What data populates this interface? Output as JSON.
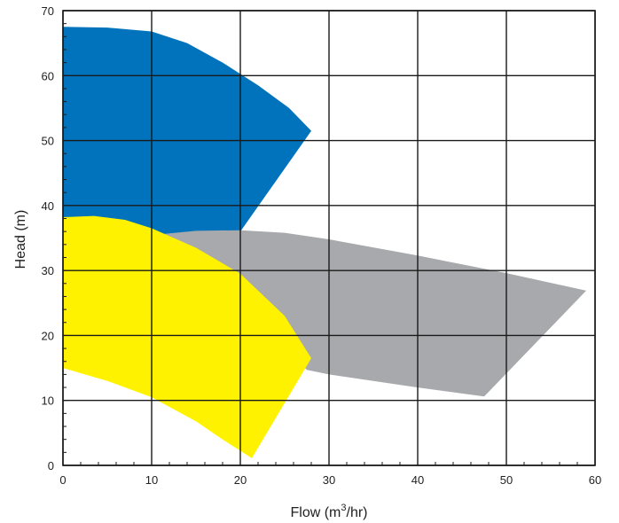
{
  "chart_data": {
    "type": "area",
    "title": "",
    "xlabel": "Flow (m",
    "xlabel_sup": "3",
    "xlabel_tail": "/hr)",
    "ylabel": "Head (m)",
    "xlim": [
      0,
      60
    ],
    "ylim": [
      0,
      70
    ],
    "x_ticks": [
      0,
      10,
      20,
      30,
      40,
      50,
      60
    ],
    "y_ticks": [
      0,
      10,
      20,
      30,
      40,
      50,
      60,
      70
    ],
    "x_tick_labels": [
      "0",
      "10",
      "20",
      "30",
      "40",
      "50",
      "60"
    ],
    "y_tick_labels": [
      "0",
      "10",
      "20",
      "30",
      "40",
      "50",
      "60",
      "70"
    ],
    "grid": true,
    "series": [
      {
        "color": "#0073BC",
        "points": [
          [
            0,
            67.5
          ],
          [
            5,
            67.4
          ],
          [
            10,
            66.8
          ],
          [
            14,
            65
          ],
          [
            18,
            62
          ],
          [
            22,
            58.5
          ],
          [
            25.5,
            55
          ],
          [
            28,
            51.5
          ],
          [
            20,
            36
          ],
          [
            14,
            35.5
          ],
          [
            0,
            35.2
          ]
        ]
      },
      {
        "color": "#A7A9AC",
        "points": [
          [
            10.5,
            35.5
          ],
          [
            15,
            36.1
          ],
          [
            20,
            36.2
          ],
          [
            25,
            35.8
          ],
          [
            30,
            34.8
          ],
          [
            40,
            32.3
          ],
          [
            50,
            29.6
          ],
          [
            59,
            26.9
          ],
          [
            47.5,
            10.6
          ],
          [
            40,
            12.0
          ],
          [
            30,
            14.0
          ],
          [
            27.5,
            14.7
          ]
        ]
      },
      {
        "color": "#FFF200",
        "points": [
          [
            0,
            38.2
          ],
          [
            3.5,
            38.4
          ],
          [
            7,
            37.8
          ],
          [
            10,
            36.5
          ],
          [
            15,
            33.5
          ],
          [
            20,
            29.5
          ],
          [
            25,
            23
          ],
          [
            28,
            16.5
          ],
          [
            21.3,
            1.1
          ],
          [
            18,
            4
          ],
          [
            15,
            6.8
          ],
          [
            10,
            10.5
          ],
          [
            5,
            13
          ],
          [
            0,
            15
          ]
        ]
      }
    ]
  }
}
